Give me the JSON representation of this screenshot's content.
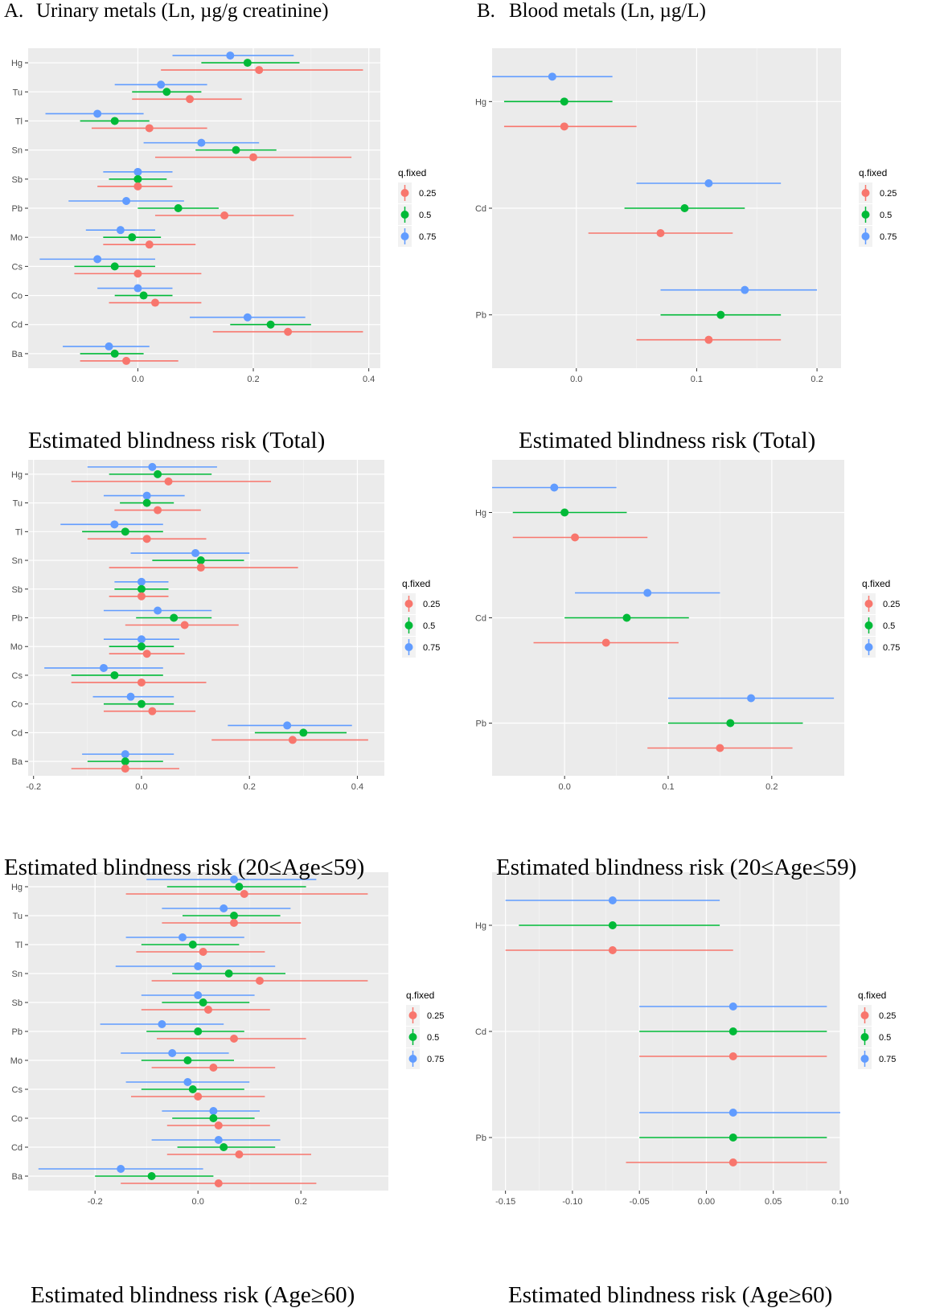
{
  "headers": [
    {
      "label": "A.",
      "text": "Urinary metals (Ln, µg/g creatinine)"
    },
    {
      "label": "B.",
      "text": "Blood metals (Ln, µg/L)"
    }
  ],
  "legend": {
    "title": "q.fixed",
    "entries": [
      "0.25",
      "0.5",
      "0.75"
    ]
  },
  "colors": {
    "q25": "#F8766D",
    "q50": "#00BA38",
    "q75": "#619CFF",
    "panel_bg": "#EBEBEB",
    "grid": "#FFFFFF",
    "axis_text": "#4D4D4D"
  },
  "chart_data": [
    {
      "id": "urine_total",
      "type": "forest",
      "caption": "Estimated blindness risk (Total)",
      "categories": [
        "Hg",
        "Tu",
        "Tl",
        "Sn",
        "Sb",
        "Pb",
        "Mo",
        "Cs",
        "Co",
        "Cd",
        "Ba"
      ],
      "xlim": [
        -0.19,
        0.42
      ],
      "xticks": [
        0.0,
        0.2,
        0.4
      ],
      "xtick_labels": [
        "0.0",
        "0.2",
        "0.4"
      ],
      "series": [
        {
          "name": "0.75",
          "est": [
            0.16,
            0.04,
            -0.07,
            0.11,
            0.0,
            -0.02,
            -0.03,
            -0.07,
            0.0,
            0.19,
            -0.05
          ],
          "lo": [
            0.06,
            -0.04,
            -0.16,
            0.01,
            -0.06,
            -0.12,
            -0.09,
            -0.17,
            -0.07,
            0.09,
            -0.13
          ],
          "hi": [
            0.27,
            0.12,
            0.01,
            0.21,
            0.06,
            0.08,
            0.03,
            0.03,
            0.06,
            0.29,
            0.02
          ]
        },
        {
          "name": "0.5",
          "est": [
            0.19,
            0.05,
            -0.04,
            0.17,
            0.0,
            0.07,
            -0.01,
            -0.04,
            0.01,
            0.23,
            -0.04
          ],
          "lo": [
            0.11,
            -0.01,
            -0.1,
            0.1,
            -0.05,
            0.0,
            -0.06,
            -0.11,
            -0.04,
            0.16,
            -0.1
          ],
          "hi": [
            0.28,
            0.11,
            0.02,
            0.24,
            0.05,
            0.14,
            0.04,
            0.03,
            0.06,
            0.3,
            0.01
          ]
        },
        {
          "name": "0.25",
          "est": [
            0.21,
            0.09,
            0.02,
            0.2,
            0.0,
            0.15,
            0.02,
            0.0,
            0.03,
            0.26,
            -0.02
          ],
          "lo": [
            0.04,
            -0.01,
            -0.08,
            0.03,
            -0.07,
            0.03,
            -0.06,
            -0.11,
            -0.05,
            0.13,
            -0.1
          ],
          "hi": [
            0.39,
            0.18,
            0.12,
            0.37,
            0.06,
            0.27,
            0.1,
            0.11,
            0.11,
            0.39,
            0.07
          ]
        }
      ]
    },
    {
      "id": "blood_total",
      "type": "forest",
      "caption": "Estimated blindness risk (Total)",
      "categories": [
        "Hg",
        "Cd",
        "Pb"
      ],
      "xlim": [
        -0.07,
        0.22
      ],
      "xticks": [
        0.0,
        0.1,
        0.2
      ],
      "xtick_labels": [
        "0.0",
        "0.1",
        "0.2"
      ],
      "series": [
        {
          "name": "0.75",
          "est": [
            -0.02,
            0.11,
            0.14
          ],
          "lo": [
            -0.07,
            0.05,
            0.07
          ],
          "hi": [
            0.03,
            0.17,
            0.2
          ]
        },
        {
          "name": "0.5",
          "est": [
            -0.01,
            0.09,
            0.12
          ],
          "lo": [
            -0.06,
            0.04,
            0.07
          ],
          "hi": [
            0.03,
            0.14,
            0.17
          ]
        },
        {
          "name": "0.25",
          "est": [
            -0.01,
            0.07,
            0.11
          ],
          "lo": [
            -0.06,
            0.01,
            0.05
          ],
          "hi": [
            0.05,
            0.13,
            0.17
          ]
        }
      ]
    },
    {
      "id": "urine_mid",
      "type": "forest",
      "caption": "Estimated blindness risk (20≤Age≤59)",
      "categories": [
        "Hg",
        "Tu",
        "Tl",
        "Sn",
        "Sb",
        "Pb",
        "Mo",
        "Cs",
        "Co",
        "Cd",
        "Ba"
      ],
      "xlim": [
        -0.21,
        0.45
      ],
      "xticks": [
        -0.2,
        0.0,
        0.2,
        0.4
      ],
      "xtick_labels": [
        "-0.2",
        "0.0",
        "0.2",
        "0.4"
      ],
      "series": [
        {
          "name": "0.75",
          "est": [
            0.02,
            0.01,
            -0.05,
            0.1,
            0.0,
            0.03,
            0.0,
            -0.07,
            -0.02,
            0.27,
            -0.03
          ],
          "lo": [
            -0.1,
            -0.07,
            -0.15,
            -0.02,
            -0.05,
            -0.07,
            -0.07,
            -0.18,
            -0.09,
            0.16,
            -0.11
          ],
          "hi": [
            0.14,
            0.08,
            0.04,
            0.2,
            0.05,
            0.13,
            0.07,
            0.04,
            0.06,
            0.39,
            0.06
          ]
        },
        {
          "name": "0.5",
          "est": [
            0.03,
            0.01,
            -0.03,
            0.11,
            0.0,
            0.06,
            0.0,
            -0.05,
            0.0,
            0.3,
            -0.03
          ],
          "lo": [
            -0.06,
            -0.04,
            -0.11,
            0.02,
            -0.05,
            -0.01,
            -0.06,
            -0.13,
            -0.07,
            0.21,
            -0.1
          ],
          "hi": [
            0.13,
            0.06,
            0.04,
            0.19,
            0.05,
            0.13,
            0.06,
            0.04,
            0.06,
            0.38,
            0.04
          ]
        },
        {
          "name": "0.25",
          "est": [
            0.05,
            0.03,
            0.01,
            0.11,
            0.0,
            0.08,
            0.01,
            0.0,
            0.02,
            0.28,
            -0.03
          ],
          "lo": [
            -0.13,
            -0.05,
            -0.1,
            -0.06,
            -0.06,
            -0.03,
            -0.06,
            -0.13,
            -0.07,
            0.13,
            -0.13
          ],
          "hi": [
            0.24,
            0.11,
            0.12,
            0.29,
            0.05,
            0.18,
            0.08,
            0.12,
            0.1,
            0.42,
            0.07
          ]
        }
      ]
    },
    {
      "id": "blood_mid",
      "type": "forest",
      "caption": "Estimated blindness risk (20≤Age≤59)",
      "categories": [
        "Hg",
        "Cd",
        "Pb"
      ],
      "xlim": [
        -0.07,
        0.27
      ],
      "xticks": [
        0.0,
        0.1,
        0.2
      ],
      "xtick_labels": [
        "0.0",
        "0.1",
        "0.2"
      ],
      "series": [
        {
          "name": "0.75",
          "est": [
            -0.01,
            0.08,
            0.18
          ],
          "lo": [
            -0.07,
            0.01,
            0.1
          ],
          "hi": [
            0.05,
            0.15,
            0.26
          ]
        },
        {
          "name": "0.5",
          "est": [
            0.0,
            0.06,
            0.16
          ],
          "lo": [
            -0.05,
            0.0,
            0.1
          ],
          "hi": [
            0.06,
            0.12,
            0.23
          ]
        },
        {
          "name": "0.25",
          "est": [
            0.01,
            0.04,
            0.15
          ],
          "lo": [
            -0.05,
            -0.03,
            0.08
          ],
          "hi": [
            0.08,
            0.11,
            0.22
          ]
        }
      ]
    },
    {
      "id": "urine_old",
      "type": "forest",
      "caption": "Estimated blindness risk (Age≥60)",
      "categories": [
        "Hg",
        "Tu",
        "Tl",
        "Sn",
        "Sb",
        "Pb",
        "Mo",
        "Cs",
        "Co",
        "Cd",
        "Ba"
      ],
      "xlim": [
        -0.33,
        0.37
      ],
      "xticks": [
        -0.2,
        0.0,
        0.2
      ],
      "xtick_labels": [
        "-0.2",
        "0.0",
        "0.2"
      ],
      "series": [
        {
          "name": "0.75",
          "est": [
            0.07,
            0.05,
            -0.03,
            0.0,
            0.0,
            -0.07,
            -0.05,
            -0.02,
            0.03,
            0.04,
            -0.15
          ],
          "lo": [
            -0.1,
            -0.07,
            -0.14,
            -0.16,
            -0.11,
            -0.19,
            -0.15,
            -0.14,
            -0.07,
            -0.09,
            -0.31
          ],
          "hi": [
            0.23,
            0.18,
            0.09,
            0.15,
            0.11,
            0.05,
            0.06,
            0.1,
            0.12,
            0.16,
            0.01
          ]
        },
        {
          "name": "0.5",
          "est": [
            0.08,
            0.07,
            -0.01,
            0.06,
            0.01,
            0.0,
            -0.02,
            -0.01,
            0.03,
            0.05,
            -0.09
          ],
          "lo": [
            -0.06,
            -0.03,
            -0.11,
            -0.05,
            -0.07,
            -0.1,
            -0.11,
            -0.11,
            -0.05,
            -0.04,
            -0.2
          ],
          "hi": [
            0.21,
            0.16,
            0.08,
            0.17,
            0.1,
            0.09,
            0.07,
            0.09,
            0.11,
            0.15,
            0.03
          ]
        },
        {
          "name": "0.25",
          "est": [
            0.09,
            0.07,
            0.01,
            0.12,
            0.02,
            0.07,
            0.03,
            0.0,
            0.04,
            0.08,
            0.04
          ],
          "lo": [
            -0.14,
            -0.07,
            -0.12,
            -0.09,
            -0.11,
            -0.08,
            -0.09,
            -0.13,
            -0.06,
            -0.06,
            -0.15
          ],
          "hi": [
            0.33,
            0.2,
            0.13,
            0.33,
            0.14,
            0.21,
            0.15,
            0.13,
            0.14,
            0.22,
            0.23
          ]
        }
      ]
    },
    {
      "id": "blood_old",
      "type": "forest",
      "caption": "Estimated blindness risk (Age≥60)",
      "categories": [
        "Hg",
        "Cd",
        "Pb"
      ],
      "xlim": [
        -0.16,
        0.1
      ],
      "xticks": [
        -0.15,
        -0.1,
        -0.05,
        0.0,
        0.05,
        0.1
      ],
      "xtick_labels": [
        "-0.15",
        "-0.10",
        "-0.05",
        "0.00",
        "0.05",
        "0.10"
      ],
      "series": [
        {
          "name": "0.75",
          "est": [
            -0.07,
            0.02,
            0.02
          ],
          "lo": [
            -0.15,
            -0.05,
            -0.05
          ],
          "hi": [
            0.01,
            0.09,
            0.1
          ]
        },
        {
          "name": "0.5",
          "est": [
            -0.07,
            0.02,
            0.02
          ],
          "lo": [
            -0.14,
            -0.05,
            -0.05
          ],
          "hi": [
            0.01,
            0.09,
            0.09
          ]
        },
        {
          "name": "0.25",
          "est": [
            -0.07,
            0.02,
            0.02
          ],
          "lo": [
            -0.15,
            -0.05,
            -0.06
          ],
          "hi": [
            0.02,
            0.09,
            0.09
          ]
        }
      ]
    }
  ]
}
